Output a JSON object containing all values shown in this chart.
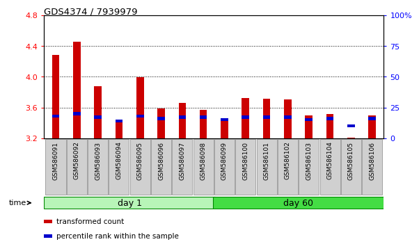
{
  "title": "GDS4374 / 7939979",
  "samples": [
    "GSM586091",
    "GSM586092",
    "GSM586093",
    "GSM586094",
    "GSM586095",
    "GSM586096",
    "GSM586097",
    "GSM586098",
    "GSM586099",
    "GSM586100",
    "GSM586101",
    "GSM586102",
    "GSM586103",
    "GSM586104",
    "GSM586105",
    "GSM586106"
  ],
  "transformed_count": [
    4.28,
    4.45,
    3.88,
    3.42,
    3.99,
    3.59,
    3.66,
    3.57,
    3.42,
    3.72,
    3.71,
    3.7,
    3.5,
    3.51,
    3.21,
    3.5
  ],
  "percentile_rank": [
    18,
    20,
    17,
    14,
    18,
    16,
    17,
    17,
    15,
    17,
    17,
    17,
    15,
    16,
    10,
    16
  ],
  "ylim_left": [
    3.2,
    4.8
  ],
  "ylim_right": [
    0,
    100
  ],
  "yticks_left": [
    3.2,
    3.6,
    4.0,
    4.4,
    4.8
  ],
  "yticks_right": [
    0,
    25,
    50,
    75,
    100
  ],
  "group_labels": [
    "day 1",
    "day 60"
  ],
  "group_split": 8,
  "n_samples": 16,
  "group_color_light": "#b8f5b8",
  "group_color_dark": "#44dd44",
  "bar_color_red": "#cc0000",
  "bar_color_blue": "#0000cc",
  "baseline": 3.2,
  "bar_width": 0.35,
  "blue_bar_height": 0.04,
  "legend_items": [
    "transformed count",
    "percentile rank within the sample"
  ],
  "legend_colors": [
    "#cc0000",
    "#0000cc"
  ],
  "tick_label_bg": "#d0d0d0"
}
